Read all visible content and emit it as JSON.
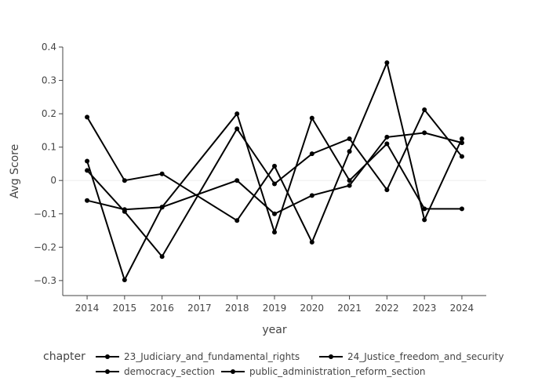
{
  "chart_data": {
    "type": "line",
    "xlabel": "year",
    "ylabel": "Avg Score",
    "x_ticks": [
      "2014",
      "2015",
      "2016",
      "2017",
      "2018",
      "2019",
      "2020",
      "2021",
      "2022",
      "2023",
      "2024"
    ],
    "y_ticks": [
      "0.4",
      "0.3",
      "0.2",
      "0.1",
      "0",
      "−0.1",
      "−0.2",
      "−0.3"
    ],
    "ylim": [
      -0.345,
      0.4
    ],
    "xlim": [
      2013.35,
      2024.65
    ],
    "grid": "zero-line only",
    "legend": {
      "title": "chapter",
      "placement": "bottom",
      "entries": [
        "23_Judiciary_and_fundamental_rights",
        "24_Justice_freedom_and_security",
        "democracy_section",
        "public_administration_reform_section"
      ]
    },
    "series": [
      {
        "name": "23_Judiciary_and_fundamental_rights",
        "points": [
          [
            2014,
            0.19
          ],
          [
            2015,
            0.0
          ],
          [
            2016,
            0.02
          ],
          [
            2018,
            -0.12
          ],
          [
            2019,
            0.043
          ],
          [
            2020,
            -0.185
          ],
          [
            2021,
            0.087
          ],
          [
            2022,
            0.353
          ],
          [
            2023,
            -0.118
          ],
          [
            2024,
            0.125
          ]
        ]
      },
      {
        "name": "24_Justice_freedom_and_security",
        "points": [
          [
            2014,
            0.058
          ],
          [
            2015,
            -0.298
          ],
          [
            2016,
            -0.08
          ],
          [
            2018,
            0.2
          ],
          [
            2019,
            -0.155
          ],
          [
            2020,
            0.187
          ],
          [
            2021,
            0.0
          ],
          [
            2022,
            0.11
          ],
          [
            2023,
            -0.085
          ],
          [
            2024,
            -0.085
          ]
        ]
      },
      {
        "name": "democracy_section",
        "points": [
          [
            2014,
            -0.06
          ],
          [
            2015,
            -0.087
          ],
          [
            2016,
            -0.08
          ],
          [
            2018,
            0.0
          ],
          [
            2019,
            -0.1
          ],
          [
            2020,
            -0.045
          ],
          [
            2021,
            -0.015
          ],
          [
            2022,
            0.13
          ],
          [
            2023,
            0.143
          ],
          [
            2024,
            0.113
          ]
        ]
      },
      {
        "name": "public_administration_reform_section",
        "points": [
          [
            2014,
            0.03
          ],
          [
            2015,
            -0.093
          ],
          [
            2016,
            -0.228
          ],
          [
            2018,
            0.155
          ],
          [
            2019,
            -0.01
          ],
          [
            2020,
            0.08
          ],
          [
            2021,
            0.125
          ],
          [
            2022,
            -0.028
          ],
          [
            2023,
            0.212
          ],
          [
            2024,
            0.072
          ]
        ]
      }
    ],
    "line_color": "#000000"
  }
}
